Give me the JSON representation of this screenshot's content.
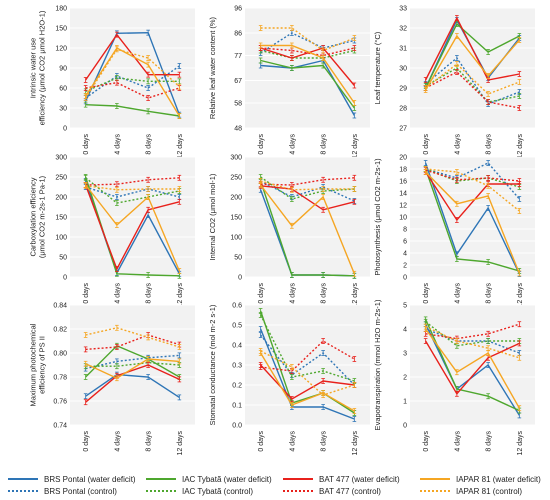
{
  "x_categories": [
    "0 days",
    "4 days",
    "8 days",
    "12 days"
  ],
  "series_styles": [
    {
      "key": "brs_wd",
      "name": "BRS Pontal (water deficit)",
      "color": "#2e75b6",
      "dash": "solid"
    },
    {
      "key": "brs_c",
      "name": "BRS Pontal (control)",
      "color": "#2e75b6",
      "dash": "dotted"
    },
    {
      "key": "iac_wd",
      "name": "IAC Tybatã (water deficit)",
      "color": "#4ea72e",
      "dash": "solid"
    },
    {
      "key": "iac_c",
      "name": "IAC Tybatã (control)",
      "color": "#4ea72e",
      "dash": "dotted"
    },
    {
      "key": "bat_wd",
      "name": "BAT 477 (water deficit)",
      "color": "#e8211c",
      "dash": "solid"
    },
    {
      "key": "bat_c",
      "name": "BAT 477 (control)",
      "color": "#e8211c",
      "dash": "dotted"
    },
    {
      "key": "iap_wd",
      "name": "IAPAR 81 (water deficit)",
      "color": "#f5a623",
      "dash": "solid"
    },
    {
      "key": "iap_c",
      "name": "IAPAR 81 (control)",
      "color": "#f5a623",
      "dash": "dotted"
    }
  ],
  "chart_data": [
    {
      "type": "line",
      "ylabel": [
        "Intrinsic water use",
        "efficiency (μmol CO2 μmol H2O-1)"
      ],
      "ylim": [
        0,
        180
      ],
      "yticks": [
        0,
        30,
        60,
        90,
        120,
        150,
        180
      ],
      "x": [
        "0 days",
        "4 days",
        "8 days",
        "12 days"
      ],
      "series": [
        {
          "key": "brs_wd",
          "values": [
            40,
            142,
            143,
            20
          ]
        },
        {
          "key": "brs_c",
          "values": [
            45,
            78,
            60,
            93
          ]
        },
        {
          "key": "iac_wd",
          "values": [
            35,
            33,
            25,
            18
          ]
        },
        {
          "key": "iac_c",
          "values": [
            55,
            75,
            70,
            70
          ]
        },
        {
          "key": "bat_wd",
          "values": [
            72,
            140,
            80,
            80
          ]
        },
        {
          "key": "bat_c",
          "values": [
            60,
            68,
            45,
            60
          ]
        },
        {
          "key": "iap_wd",
          "values": [
            48,
            120,
            95,
            18
          ]
        },
        {
          "key": "iap_c",
          "values": [
            45,
            118,
            105,
            62
          ]
        }
      ]
    },
    {
      "type": "line",
      "ylabel": [
        "Relative leaf water content (%)"
      ],
      "ylim": [
        48,
        96
      ],
      "yticks": [
        48,
        58,
        67,
        77,
        86,
        96
      ],
      "x": [
        "0 days",
        "4 days",
        "8 days",
        "12 days"
      ],
      "series": [
        {
          "key": "brs_wd",
          "values": [
            73,
            72,
            75,
            53
          ]
        },
        {
          "key": "brs_c",
          "values": [
            78,
            86,
            80,
            83
          ]
        },
        {
          "key": "iac_wd",
          "values": [
            75,
            72,
            73,
            56
          ]
        },
        {
          "key": "iac_c",
          "values": [
            79,
            76,
            76,
            79
          ]
        },
        {
          "key": "bat_wd",
          "values": [
            80,
            76,
            80,
            65
          ]
        },
        {
          "key": "bat_c",
          "values": [
            80,
            79,
            77,
            80
          ]
        },
        {
          "key": "iap_wd",
          "values": [
            81,
            81,
            76,
            58
          ]
        },
        {
          "key": "iap_c",
          "values": [
            88,
            88,
            79,
            84
          ]
        }
      ]
    },
    {
      "type": "line",
      "ylabel": [
        "Leaf temperature (°C)"
      ],
      "ylim": [
        27,
        33
      ],
      "yticks": [
        27,
        28,
        29,
        30,
        31,
        32,
        33
      ],
      "x": [
        "0 days",
        "4 days",
        "8 days",
        "12 days"
      ],
      "series": [
        {
          "key": "brs_wd",
          "values": [
            29.0,
            32.4,
            29.5,
            31.5
          ]
        },
        {
          "key": "brs_c",
          "values": [
            29.2,
            30.5,
            28.2,
            28.8
          ]
        },
        {
          "key": "iac_wd",
          "values": [
            29.0,
            32.2,
            30.8,
            31.6
          ]
        },
        {
          "key": "iac_c",
          "values": [
            29.1,
            30.0,
            28.3,
            28.6
          ]
        },
        {
          "key": "bat_wd",
          "values": [
            29.4,
            32.5,
            29.4,
            29.7
          ]
        },
        {
          "key": "bat_c",
          "values": [
            29.0,
            29.8,
            28.3,
            28.0
          ]
        },
        {
          "key": "iap_wd",
          "values": [
            28.9,
            31.6,
            29.6,
            31.4
          ]
        },
        {
          "key": "iap_c",
          "values": [
            29.0,
            30.2,
            28.7,
            29.3
          ]
        }
      ]
    },
    {
      "type": "line",
      "ylabel": [
        "Carboxylation efficiency",
        "(μmol CO2 m-2s-1 Pa-1)"
      ],
      "ylim": [
        0,
        300
      ],
      "yticks": [
        0,
        50,
        100,
        150,
        200,
        250,
        300
      ],
      "x": [
        "0 days",
        "4 days",
        "8 days",
        "12 days"
      ],
      "series": [
        {
          "key": "brs_wd",
          "values": [
            240,
            10,
            155,
            8
          ]
        },
        {
          "key": "brs_c",
          "values": [
            225,
            200,
            220,
            200
          ]
        },
        {
          "key": "iac_wd",
          "values": [
            250,
            8,
            5,
            3
          ]
        },
        {
          "key": "iac_c",
          "values": [
            248,
            185,
            200,
            215
          ]
        },
        {
          "key": "bat_wd",
          "values": [
            230,
            20,
            168,
            188
          ]
        },
        {
          "key": "bat_c",
          "values": [
            230,
            232,
            243,
            248
          ]
        },
        {
          "key": "iap_wd",
          "values": [
            230,
            130,
            200,
            15
          ]
        },
        {
          "key": "iap_c",
          "values": [
            228,
            218,
            220,
            220
          ]
        }
      ]
    },
    {
      "type": "line",
      "ylabel": [
        "Internal CO2 (μmol mol-1)"
      ],
      "ylim": [
        0,
        300
      ],
      "yticks": [
        0,
        50,
        100,
        150,
        200,
        250,
        300
      ],
      "x": [
        "0 days",
        "4 days",
        "8 days",
        "12 days"
      ],
      "series": [
        {
          "key": "brs_wd",
          "values": [
            218,
            5,
            5,
            3
          ]
        },
        {
          "key": "brs_c",
          "values": [
            240,
            200,
            225,
            190
          ]
        },
        {
          "key": "iac_wd",
          "values": [
            240,
            5,
            5,
            3
          ]
        },
        {
          "key": "iac_c",
          "values": [
            250,
            195,
            215,
            220
          ]
        },
        {
          "key": "bat_wd",
          "values": [
            228,
            220,
            168,
            188
          ]
        },
        {
          "key": "bat_c",
          "values": [
            232,
            230,
            243,
            248
          ]
        },
        {
          "key": "iap_wd",
          "values": [
            230,
            128,
            200,
            8
          ]
        },
        {
          "key": "iap_c",
          "values": [
            240,
            218,
            220,
            220
          ]
        }
      ]
    },
    {
      "type": "line",
      "ylabel": [
        "Photosynthesis (μmol CO2 m-2s-1)"
      ],
      "ylim": [
        0,
        20
      ],
      "yticks": [
        0,
        2,
        4,
        6,
        8,
        10,
        12,
        14,
        16,
        18,
        20
      ],
      "x": [
        "0 days",
        "4 days",
        "8 days",
        "12 days"
      ],
      "series": [
        {
          "key": "brs_wd",
          "values": [
            19.0,
            3.8,
            11.5,
            0.5
          ]
        },
        {
          "key": "brs_c",
          "values": [
            18.0,
            16.5,
            19.0,
            13.0
          ]
        },
        {
          "key": "iac_wd",
          "values": [
            18.0,
            3.0,
            2.5,
            1.0
          ]
        },
        {
          "key": "iac_c",
          "values": [
            18.0,
            16.0,
            16.5,
            15.0
          ]
        },
        {
          "key": "bat_wd",
          "values": [
            17.5,
            9.5,
            15.5,
            15.5
          ]
        },
        {
          "key": "bat_c",
          "values": [
            17.8,
            16.2,
            16.5,
            16.0
          ]
        },
        {
          "key": "iap_wd",
          "values": [
            17.5,
            12.2,
            13.5,
            0.6
          ]
        },
        {
          "key": "iap_c",
          "values": [
            18.0,
            17.5,
            15.2,
            11.0
          ]
        }
      ]
    },
    {
      "type": "line",
      "ylabel": [
        "Maximum photochemical",
        "efficiency of PS II"
      ],
      "ylim": [
        0.74,
        0.84
      ],
      "yticks": [
        0.74,
        0.76,
        0.78,
        0.8,
        0.82,
        0.84
      ],
      "x": [
        "0 days",
        "4 days",
        "8 days",
        "12 days"
      ],
      "series": [
        {
          "key": "brs_wd",
          "values": [
            0.764,
            0.782,
            0.78,
            0.763
          ]
        },
        {
          "key": "brs_c",
          "values": [
            0.787,
            0.793,
            0.796,
            0.798
          ]
        },
        {
          "key": "iac_wd",
          "values": [
            0.78,
            0.806,
            0.795,
            0.78
          ]
        },
        {
          "key": "iac_c",
          "values": [
            0.789,
            0.789,
            0.792,
            0.79
          ]
        },
        {
          "key": "bat_wd",
          "values": [
            0.759,
            0.781,
            0.79,
            0.778
          ]
        },
        {
          "key": "bat_c",
          "values": [
            0.803,
            0.805,
            0.815,
            0.807
          ]
        },
        {
          "key": "iap_wd",
          "values": [
            0.791,
            0.779,
            0.795,
            0.793
          ]
        },
        {
          "key": "iap_c",
          "values": [
            0.815,
            0.821,
            0.813,
            0.805
          ]
        }
      ]
    },
    {
      "type": "line",
      "ylabel": [
        "Stomatal conductance (mol m-2 s-1)"
      ],
      "ylim": [
        0.0,
        0.6
      ],
      "yticks": [
        0.0,
        0.1,
        0.2,
        0.3,
        0.4,
        0.5,
        0.6
      ],
      "x": [
        "0 days",
        "4 days",
        "8 days",
        "12 days"
      ],
      "series": [
        {
          "key": "brs_wd",
          "values": [
            0.48,
            0.09,
            0.09,
            0.03
          ]
        },
        {
          "key": "brs_c",
          "values": [
            0.45,
            0.25,
            0.36,
            0.2
          ]
        },
        {
          "key": "iac_wd",
          "values": [
            0.57,
            0.11,
            0.16,
            0.06
          ]
        },
        {
          "key": "iac_c",
          "values": [
            0.55,
            0.24,
            0.27,
            0.22
          ]
        },
        {
          "key": "bat_wd",
          "values": [
            0.3,
            0.13,
            0.22,
            0.2
          ]
        },
        {
          "key": "bat_c",
          "values": [
            0.29,
            0.27,
            0.42,
            0.33
          ]
        },
        {
          "key": "iap_wd",
          "values": [
            0.36,
            0.1,
            0.16,
            0.07
          ]
        },
        {
          "key": "iap_c",
          "values": [
            0.37,
            0.29,
            0.15,
            0.2
          ]
        }
      ]
    },
    {
      "type": "line",
      "ylabel": [
        "Evapotranspiration (mmol H2O m-2s-1)"
      ],
      "ylim": [
        0,
        5
      ],
      "yticks": [
        0,
        1,
        2,
        3,
        4,
        5
      ],
      "x": [
        "0 days",
        "4 days",
        "8 days",
        "12 days"
      ],
      "series": [
        {
          "key": "brs_wd",
          "values": [
            4.2,
            1.5,
            2.5,
            0.4
          ]
        },
        {
          "key": "brs_c",
          "values": [
            4.0,
            3.5,
            3.5,
            3.0
          ]
        },
        {
          "key": "iac_wd",
          "values": [
            4.4,
            1.5,
            1.2,
            0.6
          ]
        },
        {
          "key": "iac_c",
          "values": [
            4.3,
            3.3,
            3.5,
            3.5
          ]
        },
        {
          "key": "bat_wd",
          "values": [
            3.5,
            1.3,
            2.8,
            3.4
          ]
        },
        {
          "key": "bat_c",
          "values": [
            3.8,
            3.6,
            3.8,
            4.2
          ]
        },
        {
          "key": "iap_wd",
          "values": [
            4.0,
            2.2,
            3.0,
            0.7
          ]
        },
        {
          "key": "iap_c",
          "values": [
            4.1,
            3.5,
            3.2,
            2.8
          ]
        }
      ]
    }
  ]
}
